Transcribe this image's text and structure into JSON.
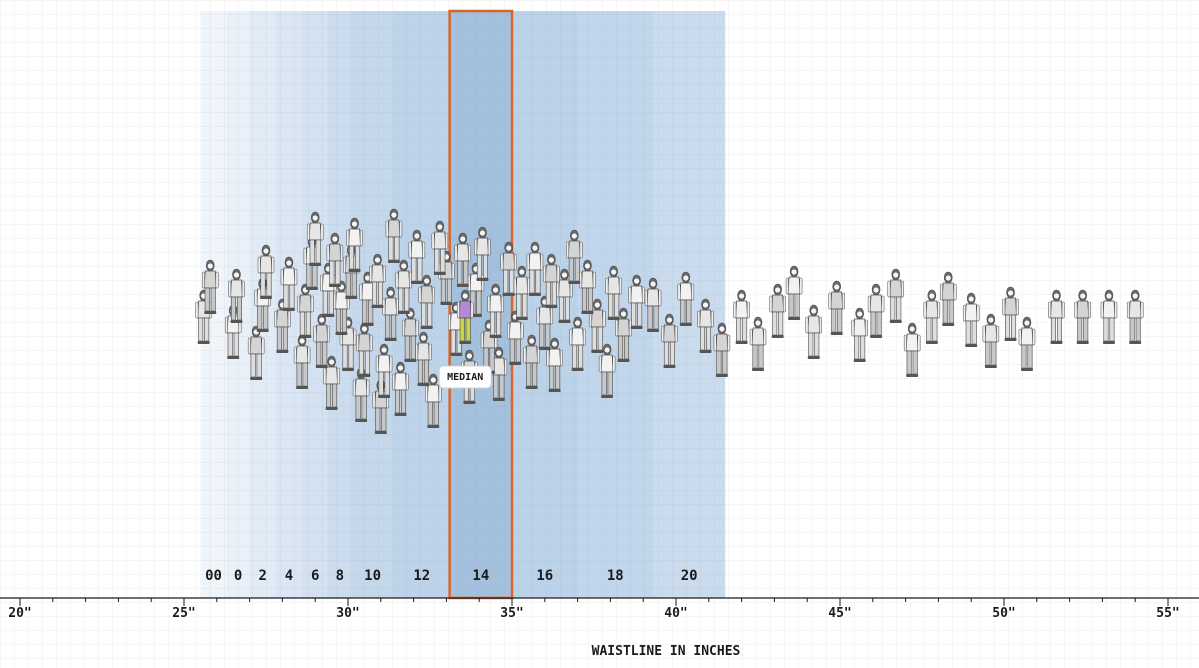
{
  "chart_data": {
    "type": "scatter",
    "x_axis": {
      "label": "WAISTLINE IN INCHES",
      "range": [
        20,
        56
      ],
      "ticks": [
        {
          "value": 20,
          "label": "20\""
        },
        {
          "value": 25,
          "label": "25\""
        },
        {
          "value": 30,
          "label": "30\""
        },
        {
          "value": 35,
          "label": "35\""
        },
        {
          "value": 40,
          "label": "40\""
        },
        {
          "value": 45,
          "label": "45\""
        },
        {
          "value": 50,
          "label": "50\""
        },
        {
          "value": 55,
          "label": "55\""
        }
      ]
    },
    "size_bands": [
      {
        "label": "00",
        "from": 25.5,
        "to": 26.3
      },
      {
        "label": "0",
        "from": 26.3,
        "to": 27.0
      },
      {
        "label": "2",
        "from": 27.0,
        "to": 27.8
      },
      {
        "label": "4",
        "from": 27.8,
        "to": 28.6
      },
      {
        "label": "6",
        "from": 28.6,
        "to": 29.4
      },
      {
        "label": "8",
        "from": 29.4,
        "to": 30.1
      },
      {
        "label": "10",
        "from": 30.1,
        "to": 31.4
      },
      {
        "label": "12",
        "from": 31.4,
        "to": 33.1
      },
      {
        "label": "14",
        "from": 33.1,
        "to": 35.0
      },
      {
        "label": "16",
        "from": 35.0,
        "to": 37.0
      },
      {
        "label": "18",
        "from": 37.0,
        "to": 39.3
      },
      {
        "label": "20",
        "from": 39.3,
        "to": 41.5
      }
    ],
    "highlight_band": "14",
    "median": {
      "label": "MEDIAN",
      "value": 34.0
    },
    "figures": [
      {
        "x": 25.6,
        "level": 0
      },
      {
        "x": 25.8,
        "level": 1
      },
      {
        "x": 26.5,
        "level": -0.5
      },
      {
        "x": 26.6,
        "level": 0.7
      },
      {
        "x": 27.2,
        "level": -1.2
      },
      {
        "x": 27.4,
        "level": 0.4
      },
      {
        "x": 27.5,
        "level": 1.5
      },
      {
        "x": 28.0,
        "level": -0.3
      },
      {
        "x": 28.2,
        "level": 1.1
      },
      {
        "x": 28.6,
        "level": -1.5
      },
      {
        "x": 28.7,
        "level": 0.2
      },
      {
        "x": 28.9,
        "level": 1.8
      },
      {
        "x": 29.0,
        "level": 2.6
      },
      {
        "x": 29.2,
        "level": -0.8
      },
      {
        "x": 29.4,
        "level": 0.9
      },
      {
        "x": 29.5,
        "level": -2.2
      },
      {
        "x": 29.6,
        "level": 1.9
      },
      {
        "x": 29.8,
        "level": 0.3
      },
      {
        "x": 30.0,
        "level": -0.9
      },
      {
        "x": 30.1,
        "level": 1.5
      },
      {
        "x": 30.2,
        "level": 2.4
      },
      {
        "x": 30.4,
        "level": -2.6
      },
      {
        "x": 30.5,
        "level": -1.1
      },
      {
        "x": 30.6,
        "level": 0.6
      },
      {
        "x": 30.9,
        "level": 1.2
      },
      {
        "x": 31.0,
        "level": -3.0
      },
      {
        "x": 31.1,
        "level": -1.8
      },
      {
        "x": 31.3,
        "level": 0.1
      },
      {
        "x": 31.4,
        "level": 2.7
      },
      {
        "x": 31.6,
        "level": -2.4
      },
      {
        "x": 31.7,
        "level": 1.0
      },
      {
        "x": 31.9,
        "level": -0.6
      },
      {
        "x": 32.1,
        "level": 2.0
      },
      {
        "x": 32.3,
        "level": -1.4
      },
      {
        "x": 32.4,
        "level": 0.5
      },
      {
        "x": 32.6,
        "level": -2.8
      },
      {
        "x": 32.8,
        "level": 2.3
      },
      {
        "x": 33.0,
        "level": 1.3
      },
      {
        "x": 33.3,
        "level": -0.4
      },
      {
        "x": 33.5,
        "level": 1.9
      },
      {
        "x": 33.7,
        "level": -2.0
      },
      {
        "x": 33.9,
        "level": 0.9
      },
      {
        "x": 34.1,
        "level": 2.1
      },
      {
        "x": 34.3,
        "level": -1.0
      },
      {
        "x": 34.5,
        "level": 0.2
      },
      {
        "x": 34.6,
        "level": -1.9
      },
      {
        "x": 34.9,
        "level": 1.6
      },
      {
        "x": 35.1,
        "level": -0.7
      },
      {
        "x": 35.3,
        "level": 0.8
      },
      {
        "x": 35.6,
        "level": -1.5
      },
      {
        "x": 35.7,
        "level": 1.6
      },
      {
        "x": 36.0,
        "level": -0.2
      },
      {
        "x": 36.2,
        "level": 1.2
      },
      {
        "x": 36.3,
        "level": -1.6
      },
      {
        "x": 36.6,
        "level": 0.7
      },
      {
        "x": 36.9,
        "level": 2.0
      },
      {
        "x": 37.0,
        "level": -0.9
      },
      {
        "x": 37.3,
        "level": 1.0
      },
      {
        "x": 37.6,
        "level": -0.3
      },
      {
        "x": 37.9,
        "level": -1.8
      },
      {
        "x": 38.1,
        "level": 0.8
      },
      {
        "x": 38.4,
        "level": -0.6
      },
      {
        "x": 38.8,
        "level": 0.5
      },
      {
        "x": 39.3,
        "level": 0.4
      },
      {
        "x": 39.8,
        "level": -0.8
      },
      {
        "x": 40.3,
        "level": 0.6
      },
      {
        "x": 40.9,
        "level": -0.3
      },
      {
        "x": 41.4,
        "level": -1.1
      },
      {
        "x": 42.0,
        "level": 0.0
      },
      {
        "x": 42.5,
        "level": -0.9
      },
      {
        "x": 43.1,
        "level": 0.2
      },
      {
        "x": 43.6,
        "level": 0.8
      },
      {
        "x": 44.2,
        "level": -0.5
      },
      {
        "x": 44.9,
        "level": 0.3
      },
      {
        "x": 45.6,
        "level": -0.6
      },
      {
        "x": 46.1,
        "level": 0.2
      },
      {
        "x": 46.7,
        "level": 0.7
      },
      {
        "x": 47.2,
        "level": -1.1
      },
      {
        "x": 47.8,
        "level": 0.0
      },
      {
        "x": 48.3,
        "level": 0.6
      },
      {
        "x": 49.0,
        "level": -0.1
      },
      {
        "x": 49.6,
        "level": -0.8
      },
      {
        "x": 50.2,
        "level": 0.1
      },
      {
        "x": 50.7,
        "level": -0.9
      },
      {
        "x": 51.6,
        "level": 0.0
      },
      {
        "x": 52.4,
        "level": 0.0
      },
      {
        "x": 53.2,
        "level": 0.0
      },
      {
        "x": 54.0,
        "level": 0.0
      }
    ]
  }
}
